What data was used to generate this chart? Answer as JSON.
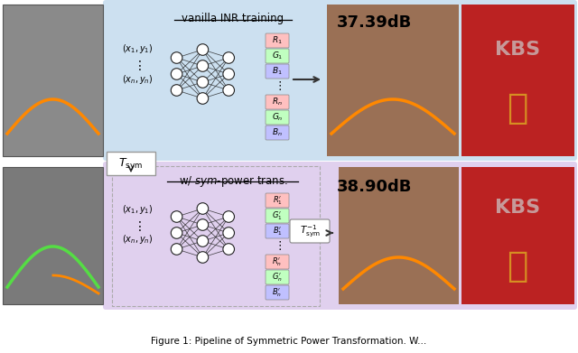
{
  "title": "Figure 1: Pipeline of Symmetric Power Transformation. W...",
  "top_panel_bg": "#cce0f0",
  "bottom_panel_bg": "#e0d0ee",
  "top_label": "vanilla INR training",
  "bottom_label": "w/ sym-power trans.",
  "top_psnr": "37.39dB",
  "bottom_psnr": "38.90dB",
  "top_inputs": [
    "$(x_1,y_1)$",
    "$\\vdots$",
    "$(x_n,y_n)$"
  ],
  "bottom_inputs": [
    "$(x_1,y_1)$",
    "$\\vdots$",
    "$(x_n,y_n)$"
  ],
  "out_labels_top": [
    "$R_1$",
    "$G_1$",
    "$B_1$",
    "$\\vdots$",
    "$R_n$",
    "$G_n$",
    "$B_n$"
  ],
  "out_labels_bot": [
    "$R^{\\prime}_1$",
    "$G^{\\prime}_1$",
    "$B^{\\prime}_1$",
    "$\\vdots$",
    "$R^{\\prime}_n$",
    "$G^{\\prime}_n$",
    "$B^{\\prime}_n$"
  ],
  "out_colors": [
    "#ffc0c0",
    "#c0ffc0",
    "#c0c0ff",
    "none",
    "#ffc0c0",
    "#c0ffc0",
    "#c0c0ff"
  ],
  "arrow_color": "#333333",
  "caption": "Figure 1: Pipeline of Symmetric Power Transformation. W..."
}
